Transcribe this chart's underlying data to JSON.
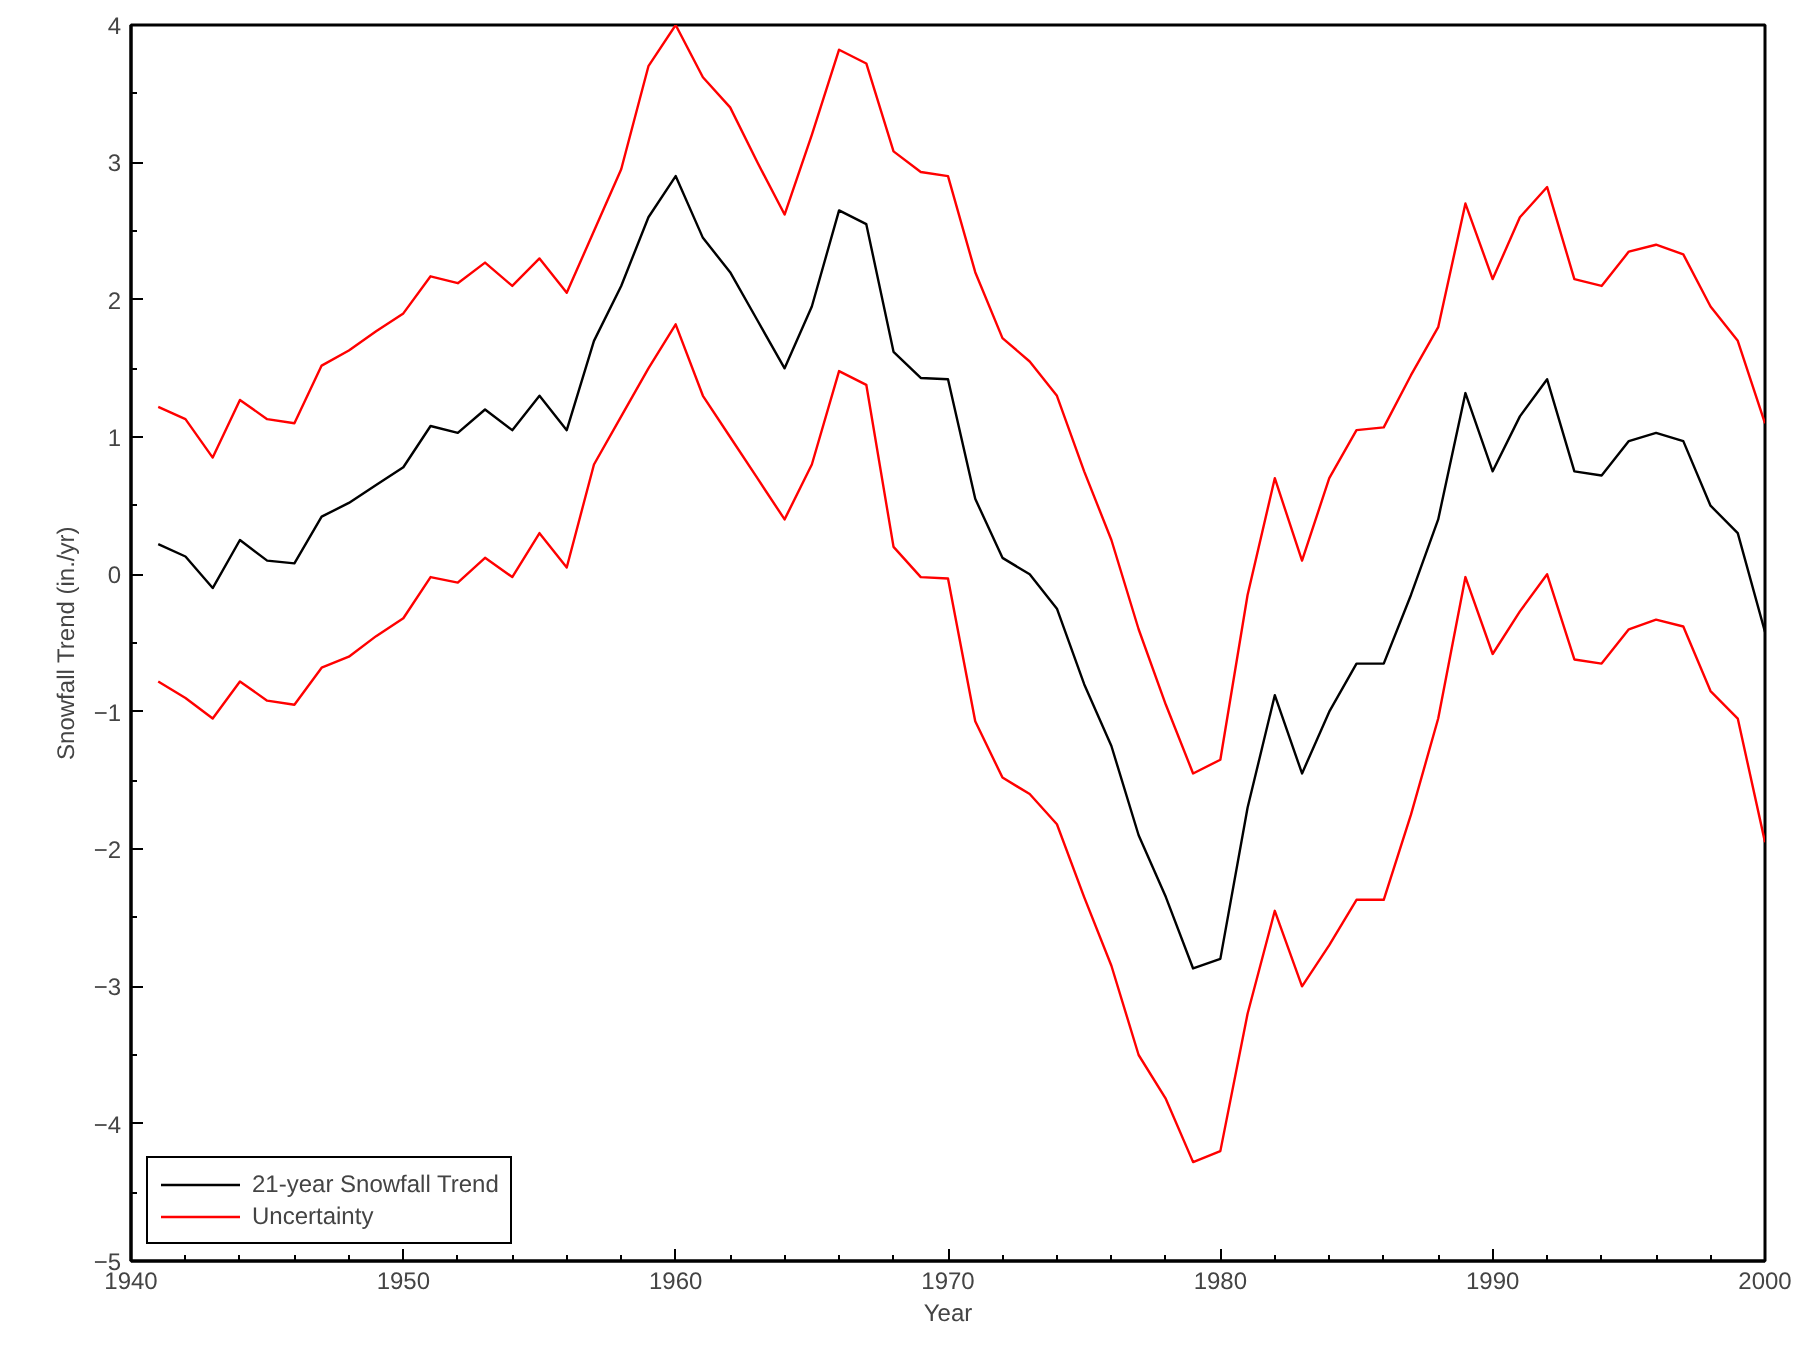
{
  "chart_data": {
    "type": "line",
    "xlabel": "Year",
    "ylabel": "Snowfall Trend (in./yr)",
    "x": [
      1941,
      1942,
      1943,
      1944,
      1945,
      1946,
      1947,
      1948,
      1949,
      1950,
      1951,
      1952,
      1953,
      1954,
      1955,
      1956,
      1957,
      1958,
      1959,
      1960,
      1961,
      1962,
      1963,
      1964,
      1965,
      1966,
      1967,
      1968,
      1969,
      1970,
      1971,
      1972,
      1973,
      1974,
      1975,
      1976,
      1977,
      1978,
      1979,
      1980,
      1981,
      1982,
      1983,
      1984,
      1985,
      1986,
      1987,
      1988,
      1989,
      1990,
      1991,
      1992,
      1993,
      1994,
      1995,
      1996,
      1997,
      1998,
      1999,
      2000
    ],
    "series": [
      {
        "name": "21-year Snowfall Trend",
        "color": "#000000",
        "values": [
          0.22,
          0.13,
          -0.1,
          0.25,
          0.1,
          0.08,
          0.42,
          0.52,
          0.65,
          0.78,
          1.08,
          1.03,
          1.2,
          1.05,
          1.3,
          1.05,
          1.7,
          2.1,
          2.6,
          2.9,
          2.45,
          2.2,
          1.85,
          1.5,
          1.95,
          2.65,
          2.55,
          1.62,
          1.43,
          1.42,
          0.55,
          0.12,
          0.0,
          -0.25,
          -0.8,
          -1.25,
          -1.9,
          -2.35,
          -2.87,
          -2.8,
          -1.7,
          -0.88,
          -1.45,
          -1.0,
          -0.65,
          -0.65,
          -0.15,
          0.4,
          1.32,
          0.75,
          1.15,
          1.42,
          0.75,
          0.72,
          0.97,
          1.03,
          0.97,
          0.5,
          0.3,
          -0.42
        ]
      },
      {
        "name": "Uncertainty",
        "color": "#ff0000",
        "values": [
          1.22,
          1.13,
          0.85,
          1.27,
          1.13,
          1.1,
          1.52,
          1.63,
          1.77,
          1.9,
          2.17,
          2.12,
          2.27,
          2.1,
          2.3,
          2.05,
          2.5,
          2.95,
          3.7,
          4.0,
          3.62,
          3.4,
          3.0,
          2.62,
          3.2,
          3.82,
          3.72,
          3.08,
          2.93,
          2.9,
          2.2,
          1.72,
          1.55,
          1.3,
          0.75,
          0.25,
          -0.4,
          -0.95,
          -1.45,
          -1.35,
          -0.15,
          0.7,
          0.1,
          0.7,
          1.05,
          1.07,
          1.45,
          1.8,
          2.7,
          2.15,
          2.6,
          2.82,
          2.15,
          2.1,
          2.35,
          2.4,
          2.33,
          1.95,
          1.7,
          1.1
        ]
      },
      {
        "color": "#ff0000",
        "values": [
          -0.78,
          -0.9,
          -1.05,
          -0.78,
          -0.92,
          -0.95,
          -0.68,
          -0.6,
          -0.45,
          -0.32,
          -0.02,
          -0.06,
          0.12,
          -0.02,
          0.3,
          0.05,
          0.8,
          1.15,
          1.5,
          1.82,
          1.3,
          1.0,
          0.7,
          0.4,
          0.8,
          1.48,
          1.38,
          0.2,
          -0.02,
          -0.03,
          -1.07,
          -1.48,
          -1.6,
          -1.82,
          -2.35,
          -2.85,
          -3.5,
          -3.82,
          -4.28,
          -4.2,
          -3.2,
          -2.45,
          -3.0,
          -2.7,
          -2.37,
          -2.37,
          -1.75,
          -1.05,
          -0.02,
          -0.58,
          -0.27,
          0.0,
          -0.62,
          -0.65,
          -0.4,
          -0.33,
          -0.38,
          -0.85,
          -1.05,
          -1.95
        ]
      }
    ],
    "xlim": [
      1940,
      2000
    ],
    "xticks": [
      1940,
      1950,
      1960,
      1970,
      1980,
      1990,
      2000
    ],
    "ylim": [
      -5,
      4
    ],
    "yticks": [
      -5,
      -4,
      -3,
      -2,
      -1,
      0,
      1,
      2,
      3,
      4
    ],
    "grid": false,
    "legend": "bottom left",
    "marker": "none",
    "line_style": "solid"
  }
}
